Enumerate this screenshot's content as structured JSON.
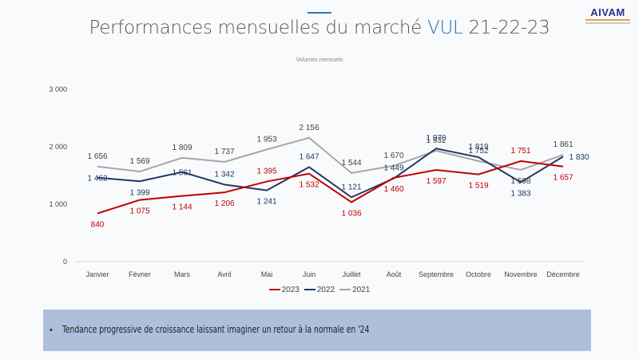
{
  "header": {
    "title_part1": "Performances mensuelles du marché ",
    "title_highlight": "VUL",
    "title_part2": " 21-22-23",
    "accent_color": "#2e7bb8",
    "logo_text": "AIVAM"
  },
  "note": {
    "bullet": "•",
    "text": "Tendance progressive de croissance laissant imaginer un retour à la normale en '24"
  },
  "chart_data": {
    "type": "line",
    "title": "Volumes mensuels",
    "xlabel": "",
    "ylabel": "",
    "ylim": [
      0,
      3000
    ],
    "yticks": [
      0,
      1000,
      2000,
      3000
    ],
    "ytick_labels": [
      "0",
      "1 000",
      "2 000",
      "3 000"
    ],
    "grid": "horizontal baseline only",
    "legend_position": "bottom",
    "categories": [
      "Janvier",
      "Février",
      "Mars",
      "Avril",
      "Mai",
      "Juin",
      "Juillet",
      "Août",
      "Septembre",
      "Octobre",
      "Novembre",
      "Décembre"
    ],
    "series": [
      {
        "name": "2023",
        "color": "#c00000",
        "values": [
          840,
          1075,
          1144,
          1206,
          1395,
          1532,
          1036,
          1460,
          1597,
          1519,
          1751,
          1657
        ],
        "labels": [
          "840",
          "1 075",
          "1 144",
          "1 206",
          "1 395",
          "1 532",
          "1 036",
          "1 460",
          "1 597",
          "1 519",
          "1 751",
          "1 657"
        ]
      },
      {
        "name": "2022",
        "color": "#1f3864",
        "values": [
          1462,
          1399,
          1561,
          1342,
          1241,
          1647,
          1121,
          1449,
          1970,
          1819,
          1383,
          1830
        ],
        "labels": [
          "1 462",
          "1 399",
          "1 561",
          "1 342",
          "1 241",
          "1 647",
          "1 121",
          "1 449",
          "1 970",
          "1 819",
          "1 383",
          "1 830"
        ]
      },
      {
        "name": "2021",
        "color": "#a6a6a6",
        "values": [
          1656,
          1569,
          1809,
          1737,
          1953,
          2156,
          1544,
          1670,
          1932,
          1752,
          1598,
          1861
        ],
        "labels": [
          "1 656",
          "1 569",
          "1 809",
          "1 737",
          "1 953",
          "2 156",
          "1 544",
          "1 670",
          "1 932",
          "1 752",
          "1 598",
          "1 861"
        ]
      }
    ]
  }
}
